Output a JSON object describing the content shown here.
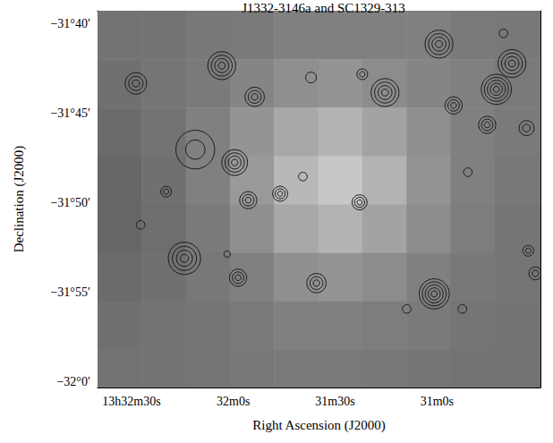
{
  "chart_data": {
    "type": "image",
    "title": "J1332-3146a and SC1329-313",
    "x_label": "Right Ascension (J2000)",
    "y_label": "Declination (J2000)",
    "xlim": [
      160,
      29.5
    ],
    "ylim": [
      -32.005,
      -31.655
    ],
    "xticks": [
      {
        "value": 150,
        "label": "13h32m30s"
      },
      {
        "value": 120,
        "label": "32m0s"
      },
      {
        "value": 90,
        "label": "31m30s"
      },
      {
        "value": 60,
        "label": "31m0s"
      }
    ],
    "yticks": [
      {
        "value": -31.6667,
        "label": "−31°40′"
      },
      {
        "value": -31.75,
        "label": "−31°45′"
      },
      {
        "value": -31.8333,
        "label": "−31°50′"
      },
      {
        "value": -31.9167,
        "label": "−31°55′"
      },
      {
        "value": -32,
        "label": "−32°0′"
      }
    ],
    "grid": false,
    "color": "#1a1a1a",
    "image": {
      "x_edges": [
        160,
        147,
        134,
        121,
        108,
        95,
        82,
        69,
        56,
        43,
        29.5
      ],
      "y_edges": [
        -31.655,
        -31.7,
        -31.745,
        -31.79,
        -31.835,
        -31.88,
        -31.925,
        -31.97,
        -32.005
      ],
      "values": [
        [
          0.45,
          0.45,
          0.47,
          0.48,
          0.5,
          0.5,
          0.5,
          0.5,
          0.48,
          0.47
        ],
        [
          0.44,
          0.46,
          0.48,
          0.52,
          0.56,
          0.58,
          0.55,
          0.52,
          0.5,
          0.48
        ],
        [
          0.42,
          0.45,
          0.5,
          0.58,
          0.66,
          0.7,
          0.64,
          0.56,
          0.5,
          0.48
        ],
        [
          0.4,
          0.44,
          0.5,
          0.6,
          0.72,
          0.78,
          0.7,
          0.58,
          0.5,
          0.47
        ],
        [
          0.4,
          0.43,
          0.48,
          0.56,
          0.66,
          0.7,
          0.64,
          0.55,
          0.49,
          0.46
        ],
        [
          0.42,
          0.44,
          0.47,
          0.5,
          0.56,
          0.58,
          0.55,
          0.5,
          0.47,
          0.46
        ],
        [
          0.44,
          0.45,
          0.46,
          0.48,
          0.5,
          0.5,
          0.49,
          0.48,
          0.46,
          0.45
        ],
        [
          0.45,
          0.45,
          0.46,
          0.47,
          0.48,
          0.48,
          0.47,
          0.46,
          0.45,
          0.45
        ]
      ]
    },
    "sources": [
      {
        "x": 148.7,
        "y": -31.7225,
        "radius": 0.01,
        "levels": 3
      },
      {
        "x": 123.4,
        "y": -31.706,
        "radius": 0.013,
        "levels": 4
      },
      {
        "x": 113.7,
        "y": -31.735,
        "radius": 0.009,
        "levels": 3
      },
      {
        "x": 97.1,
        "y": -31.717,
        "radius": 0.005,
        "levels": 1
      },
      {
        "x": 82.0,
        "y": -31.714,
        "radius": 0.005,
        "levels": 2
      },
      {
        "x": 75.3,
        "y": -31.731,
        "radius": 0.013,
        "levels": 4
      },
      {
        "x": 59.4,
        "y": -31.686,
        "radius": 0.013,
        "levels": 4
      },
      {
        "x": 55.1,
        "y": -31.743,
        "radius": 0.008,
        "levels": 3
      },
      {
        "x": 42.5,
        "y": -31.728,
        "radius": 0.014,
        "levels": 5
      },
      {
        "x": 37.9,
        "y": -31.704,
        "radius": 0.013,
        "levels": 4
      },
      {
        "x": 45.2,
        "y": -31.761,
        "radius": 0.008,
        "levels": 3
      },
      {
        "x": 33.6,
        "y": -31.764,
        "radius": 0.007,
        "levels": 2
      },
      {
        "x": 119.6,
        "y": -31.796,
        "radius": 0.012,
        "levels": 4
      },
      {
        "x": 131.2,
        "y": -31.784,
        "radius": 0.018,
        "levels": 2
      },
      {
        "x": 139.8,
        "y": -31.823,
        "radius": 0.005,
        "levels": 2
      },
      {
        "x": 115.6,
        "y": -31.831,
        "radius": 0.008,
        "levels": 3
      },
      {
        "x": 106.2,
        "y": -31.825,
        "radius": 0.007,
        "levels": 3
      },
      {
        "x": 99.5,
        "y": -31.809,
        "radius": 0.004,
        "levels": 1
      },
      {
        "x": 82.8,
        "y": -31.833,
        "radius": 0.007,
        "levels": 3
      },
      {
        "x": 134.4,
        "y": -31.885,
        "radius": 0.015,
        "levels": 4
      },
      {
        "x": 121.8,
        "y": -31.881,
        "radius": 0.003,
        "levels": 1
      },
      {
        "x": 118.6,
        "y": -31.903,
        "radius": 0.008,
        "levels": 3
      },
      {
        "x": 95.5,
        "y": -31.908,
        "radius": 0.009,
        "levels": 3
      },
      {
        "x": 60.8,
        "y": -31.918,
        "radius": 0.014,
        "levels": 5
      },
      {
        "x": 68.9,
        "y": -31.932,
        "radius": 0.004,
        "levels": 1
      },
      {
        "x": 52.5,
        "y": -31.932,
        "radius": 0.004,
        "levels": 1
      },
      {
        "x": 33.1,
        "y": -31.878,
        "radius": 0.005,
        "levels": 2
      },
      {
        "x": 31.0,
        "y": -31.899,
        "radius": 0.006,
        "levels": 2
      },
      {
        "x": 147.3,
        "y": -31.854,
        "radius": 0.004,
        "levels": 1
      },
      {
        "x": 40.4,
        "y": -31.676,
        "radius": 0.004,
        "levels": 1
      },
      {
        "x": 50.9,
        "y": -31.805,
        "radius": 0.004,
        "levels": 1
      }
    ]
  }
}
